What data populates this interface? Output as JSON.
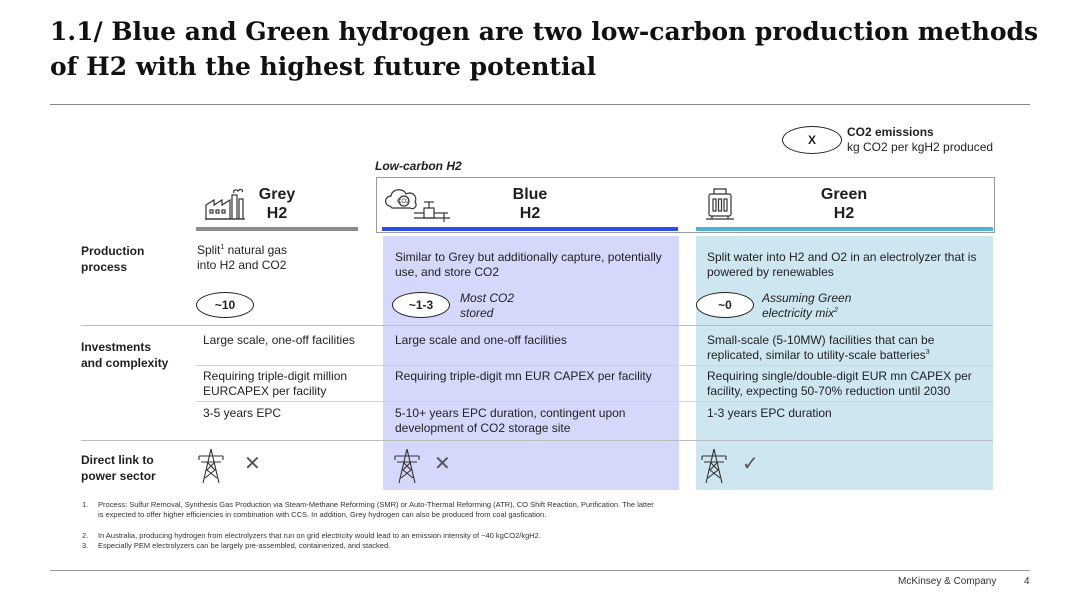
{
  "title": "1.1/ Blue and Green hydrogen are two low-carbon production methods of H2 with the highest future potential",
  "legend": {
    "symbol": "X",
    "title": "CO2 emissions",
    "subtitle": "kg CO2 per kgH2 produced"
  },
  "low_carbon_label": "Low-carbon H2",
  "columns": {
    "grey": {
      "line1": "Grey",
      "line2": "H2",
      "color": "#8c8c8c"
    },
    "blue": {
      "line1": "Blue",
      "line2": "H2",
      "color": "#2b4ee6"
    },
    "green": {
      "line1": "Green",
      "line2": "H2",
      "color": "#4cb3d4"
    }
  },
  "rows": {
    "production": {
      "label_line1": "Production",
      "label_line2": "process",
      "grey_text": "Split",
      "grey_sup": "1",
      "grey_text2": " natural gas",
      "grey_text3": "into H2 and CO2",
      "blue_text": "Similar to Grey but additionally capture, potentially use, and store CO2",
      "green_text": "Split water into H2 and O2 in an electrolyzer that is powered by renewables",
      "grey_emission": "~10",
      "blue_emission": "~1-3",
      "blue_note": "Most CO2 stored",
      "green_emission": "~0",
      "green_note": "Assuming Green electricity mix",
      "green_note_sup": "2"
    },
    "investments": {
      "label_line1": "Investments",
      "label_line2": "and complexity",
      "grey_1": "Large scale, one-off facilities",
      "grey_2": "Requiring triple-digit million EURCAPEX per facility",
      "grey_3": "3-5 years EPC",
      "blue_1": "Large scale and one-off facilities",
      "blue_2": "Requiring triple-digit mn EUR CAPEX per facility",
      "blue_3": "5-10+ years EPC duration, contingent upon development of CO2 storage site",
      "green_1": "Small-scale (5-10MW) facilities that can be replicated, similar to utility-scale batteries",
      "green_1_sup": "3",
      "green_2": "Requiring single/double-digit EUR mn CAPEX per facility, expecting 50-70% reduction until 2030",
      "green_3": "1-3 years EPC duration"
    },
    "power": {
      "label_line1": "Direct link to",
      "label_line2": "power sector",
      "grey_mark": "✕",
      "blue_mark": "✕",
      "green_mark": "✓"
    }
  },
  "footnotes": [
    {
      "num": "1.",
      "text": "Process: Sulfur Removal, Synthesis Gas Production via Steam-Methane Reforming (SMR) or Auto-Thermal Reforming (ATR), CO Shift Reaction, Purification. The latter is expected to offer higher efficiencies in combination with CCS. In addition, Grey hydrogen can also be produced from coal gasfication."
    },
    {
      "num": "2.",
      "text": "In Australia, producing hydrogen from electrolyzers that run on grid electricity would lead to an emission intensity of ~40 kgCO2/kgH2."
    },
    {
      "num": "3.",
      "text": "Especially PEM electrolyzers can be largely pre-assembled, containerized, and stacked."
    }
  ],
  "footer": {
    "brand": "McKinsey & Company",
    "page": "4"
  },
  "icons": {
    "grey": "factory-icon",
    "blue": "co2-capture-icon",
    "green": "electrolyzer-icon",
    "power": "transmission-tower-icon"
  }
}
